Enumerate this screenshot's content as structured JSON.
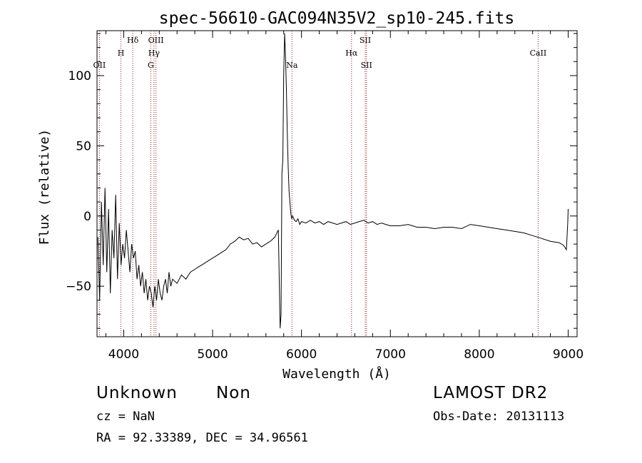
{
  "chart_data": {
    "type": "line",
    "title": "spec-56610-GAC094N35V2_sp10-245.fits",
    "xlabel": "Wavelength (Å)",
    "ylabel": "Flux (relative)",
    "xlim": [
      3700,
      9100
    ],
    "ylim": [
      -86,
      132
    ],
    "xticks": [
      4000,
      5000,
      6000,
      7000,
      8000,
      9000
    ],
    "yticks": [
      -50,
      0,
      50,
      100
    ],
    "grid": false,
    "line_color": "#000000",
    "marker_color": "#8b1a1a",
    "series": [
      {
        "x": [
          3710,
          3730,
          3750,
          3770,
          3790,
          3810,
          3830,
          3850,
          3870,
          3890,
          3910,
          3930,
          3950,
          3970,
          3990,
          4010,
          4030,
          4050,
          4070,
          4090,
          4110,
          4130,
          4150,
          4170,
          4190,
          4210,
          4230,
          4250,
          4270,
          4290,
          4310,
          4330,
          4350,
          4370,
          4390,
          4410,
          4430,
          4450,
          4470,
          4490,
          4510,
          4530,
          4550,
          4600,
          4650,
          4700,
          4750,
          4800,
          4850,
          4900,
          4950,
          5000,
          5050,
          5100,
          5150,
          5200,
          5250,
          5300,
          5350,
          5400,
          5450,
          5500,
          5550,
          5600,
          5650,
          5700,
          5740,
          5760,
          5770,
          5780,
          5790,
          5800,
          5810,
          5820,
          5830,
          5840,
          5850,
          5860,
          5870,
          5880,
          5890,
          5900,
          5920,
          5940,
          5960,
          5980,
          6000,
          6050,
          6100,
          6150,
          6200,
          6250,
          6300,
          6350,
          6400,
          6450,
          6500,
          6550,
          6600,
          6650,
          6700,
          6750,
          6800,
          6850,
          6900,
          6950,
          7000,
          7100,
          7200,
          7300,
          7400,
          7500,
          7600,
          7700,
          7800,
          7900,
          8000,
          8100,
          8200,
          8300,
          8400,
          8500,
          8600,
          8700,
          8800,
          8900,
          8950,
          8980,
          8995,
          9000
        ],
        "y": [
          -15,
          -60,
          10,
          -35,
          20,
          -40,
          5,
          -55,
          -10,
          -30,
          15,
          -45,
          -5,
          -35,
          -20,
          -30,
          -10,
          -25,
          -40,
          -20,
          -30,
          -25,
          -45,
          -35,
          -50,
          -40,
          -55,
          -45,
          -60,
          -50,
          -55,
          -65,
          -50,
          -60,
          -45,
          -55,
          -60,
          -50,
          -45,
          -55,
          -40,
          -50,
          -45,
          -48,
          -42,
          -45,
          -40,
          -38,
          -36,
          -34,
          -32,
          -30,
          -28,
          -26,
          -24,
          -20,
          -18,
          -15,
          -17,
          -16,
          -20,
          -19,
          -22,
          -20,
          -18,
          -15,
          -10,
          -80,
          -70,
          30,
          40,
          100,
          130,
          115,
          90,
          60,
          35,
          18,
          10,
          2,
          -2,
          0,
          -3,
          -4,
          -2,
          -6,
          -4,
          -5,
          -3,
          -5,
          -4,
          -6,
          -4,
          -5,
          -6,
          -5,
          -4,
          -6,
          -5,
          -4,
          -3,
          -5,
          -4,
          -6,
          -5,
          -6,
          -7,
          -7,
          -6,
          -8,
          -8,
          -9,
          -8,
          -8,
          -9,
          -6,
          -7,
          -8,
          -9,
          -10,
          -11,
          -12,
          -14,
          -16,
          -18,
          -19,
          -21,
          -24,
          -5,
          5
        ]
      }
    ],
    "lines": [
      {
        "label": "OII",
        "wavelength": 3727,
        "label_level": 3
      },
      {
        "label": "H",
        "wavelength": 3969,
        "label_level": 2
      },
      {
        "label": "Hδ",
        "wavelength": 4102,
        "label_level": 1
      },
      {
        "label": "G",
        "wavelength": 4305,
        "label_level": 3
      },
      {
        "label": "Hγ",
        "wavelength": 4341,
        "label_level": 2
      },
      {
        "label": "OIII",
        "wavelength": 4363,
        "label_level": 1
      },
      {
        "label": "Na",
        "wavelength": 5893,
        "label_level": 3
      },
      {
        "label": "Hα",
        "wavelength": 6563,
        "label_level": 2
      },
      {
        "label": "SII",
        "wavelength": 6717,
        "label_level": 1
      },
      {
        "label": "SII",
        "wavelength": 6731,
        "label_level": 3
      },
      {
        "label": "CaII",
        "wavelength": 8662,
        "label_level": 2
      }
    ]
  },
  "footer": {
    "classification": "Unknown",
    "subclass": "Non",
    "survey": "LAMOST DR2",
    "cz": "cz = NaN",
    "obs_date": "Obs-Date: 20131113",
    "coords": "RA =  92.33389, DEC =  34.96561"
  }
}
